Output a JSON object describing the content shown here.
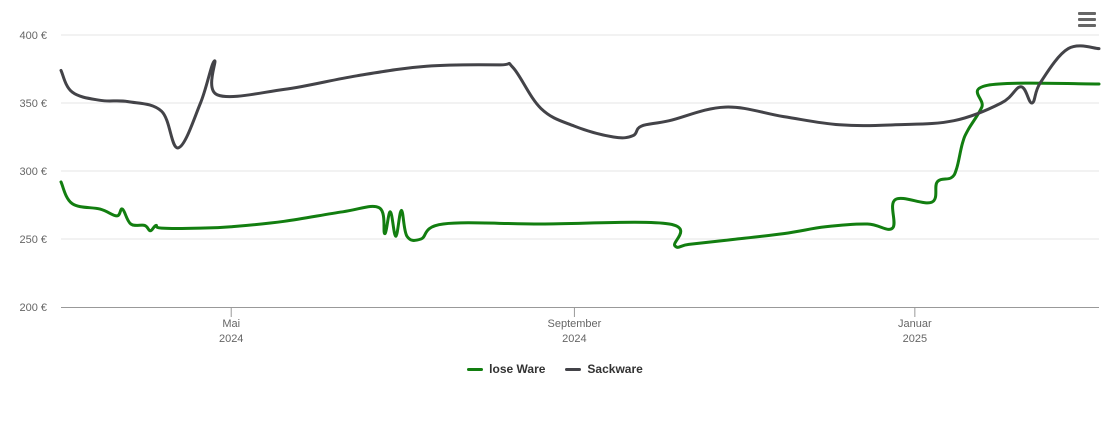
{
  "chart_data": {
    "type": "line",
    "y_ticks": [
      200,
      250,
      300,
      350,
      400
    ],
    "y_tick_suffix": " €",
    "ylim": [
      200,
      400
    ],
    "x_range": [
      "2024-03-01",
      "2025-03-08"
    ],
    "x_ticks": [
      {
        "date": "2024-05-01",
        "line1": "Mai",
        "line2": "2024"
      },
      {
        "date": "2024-09-01",
        "line1": "September",
        "line2": "2024"
      },
      {
        "date": "2025-01-01",
        "line1": "Januar",
        "line2": "2025"
      }
    ],
    "grid": true,
    "legend_position": "bottom",
    "series": [
      {
        "name": "lose Ware",
        "color": "#127e10",
        "points": [
          [
            "2024-03-01",
            292
          ],
          [
            "2024-03-05",
            276
          ],
          [
            "2024-03-15",
            272
          ],
          [
            "2024-03-21",
            267
          ],
          [
            "2024-03-23",
            272
          ],
          [
            "2024-03-26",
            261
          ],
          [
            "2024-03-31",
            260
          ],
          [
            "2024-04-02",
            256
          ],
          [
            "2024-04-04",
            260
          ],
          [
            "2024-04-06",
            258
          ],
          [
            "2024-04-20",
            258
          ],
          [
            "2024-05-01",
            259
          ],
          [
            "2024-05-20",
            263
          ],
          [
            "2024-06-10",
            270
          ],
          [
            "2024-06-23",
            273
          ],
          [
            "2024-06-25",
            254
          ],
          [
            "2024-06-27",
            270
          ],
          [
            "2024-06-29",
            252
          ],
          [
            "2024-07-01",
            271
          ],
          [
            "2024-07-03",
            252
          ],
          [
            "2024-07-08",
            250
          ],
          [
            "2024-07-16",
            261
          ],
          [
            "2024-08-20",
            261
          ],
          [
            "2024-10-05",
            261
          ],
          [
            "2024-10-07",
            245
          ],
          [
            "2024-10-12",
            246
          ],
          [
            "2024-10-25",
            249
          ],
          [
            "2024-11-15",
            254
          ],
          [
            "2024-11-30",
            259
          ],
          [
            "2024-12-15",
            261
          ],
          [
            "2024-12-24",
            258
          ],
          [
            "2024-12-25",
            279
          ],
          [
            "2025-01-07",
            277
          ],
          [
            "2025-01-09",
            292
          ],
          [
            "2025-01-14",
            295
          ],
          [
            "2025-01-16",
            302
          ],
          [
            "2025-01-18",
            320
          ],
          [
            "2025-01-20",
            330
          ],
          [
            "2025-01-25",
            347
          ],
          [
            "2025-01-27",
            363
          ],
          [
            "2025-03-08",
            364
          ]
        ]
      },
      {
        "name": "Sackware",
        "color": "#434348",
        "points": [
          [
            "2024-03-01",
            374
          ],
          [
            "2024-03-05",
            358
          ],
          [
            "2024-03-15",
            352
          ],
          [
            "2024-03-25",
            351
          ],
          [
            "2024-04-06",
            344
          ],
          [
            "2024-04-12",
            317
          ],
          [
            "2024-04-20",
            350
          ],
          [
            "2024-04-25",
            381
          ],
          [
            "2024-04-26",
            356
          ],
          [
            "2024-05-20",
            360
          ],
          [
            "2024-06-15",
            370
          ],
          [
            "2024-07-10",
            377
          ],
          [
            "2024-08-05",
            378
          ],
          [
            "2024-08-10",
            376
          ],
          [
            "2024-08-20",
            346
          ],
          [
            "2024-09-01",
            333
          ],
          [
            "2024-09-15",
            325
          ],
          [
            "2024-09-22",
            326
          ],
          [
            "2024-09-25",
            333
          ],
          [
            "2024-10-05",
            337
          ],
          [
            "2024-10-25",
            347
          ],
          [
            "2024-11-15",
            340
          ],
          [
            "2024-12-05",
            334
          ],
          [
            "2024-12-25",
            334
          ],
          [
            "2025-01-15",
            337
          ],
          [
            "2025-02-01",
            350
          ],
          [
            "2025-02-08",
            362
          ],
          [
            "2025-02-12",
            350
          ],
          [
            "2025-02-15",
            365
          ],
          [
            "2025-02-25",
            390
          ],
          [
            "2025-03-08",
            390
          ]
        ]
      }
    ]
  },
  "legend": {
    "items": [
      {
        "label": "lose Ware",
        "color": "#127e10"
      },
      {
        "label": "Sackware",
        "color": "#434348"
      }
    ]
  },
  "icons": {
    "menu": "hamburger-menu-icon"
  }
}
